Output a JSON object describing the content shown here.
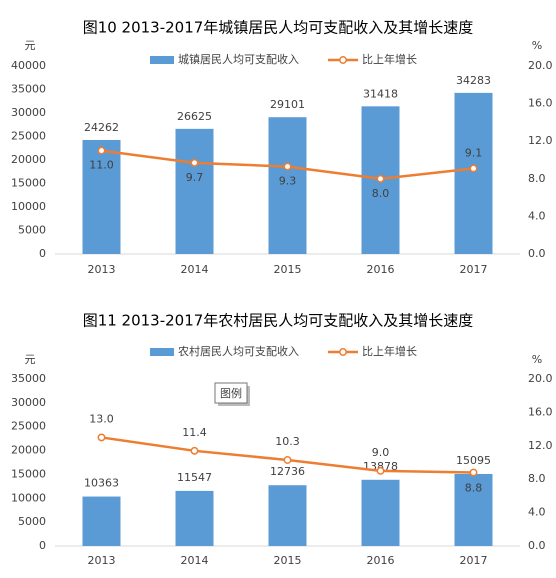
{
  "chart_data": [
    {
      "type": "bar",
      "title": "图10  2013-2017年城镇居民人均可支配收入及其增长速度",
      "ylabel": "元",
      "y2label": "%",
      "categories": [
        "2013",
        "2014",
        "2015",
        "2016",
        "2017"
      ],
      "series": [
        {
          "name": "城镇居民人均可支配收入",
          "type": "bar",
          "color": "#5b9bd5",
          "values": [
            24262,
            26625,
            29101,
            31418,
            34283
          ]
        },
        {
          "name": "比上年增长",
          "type": "line",
          "axis": "y2",
          "color": "#ed7d31",
          "values": [
            11.0,
            9.7,
            9.3,
            8.0,
            9.1
          ],
          "value_labels": [
            "11.0",
            "9.7",
            "9.3",
            "8.0",
            "9.1"
          ]
        }
      ],
      "ylim": [
        0,
        40000
      ],
      "yticks": [
        0,
        5000,
        10000,
        15000,
        20000,
        25000,
        30000,
        35000,
        40000
      ],
      "y2lim": [
        0,
        20
      ],
      "y2ticks": [
        {
          "value": 0,
          "label": "0.0"
        },
        {
          "value": 4,
          "label": "4.0"
        },
        {
          "value": 8,
          "label": "8.0"
        },
        {
          "value": 12,
          "label": "12.0"
        },
        {
          "value": 16,
          "label": "16.0"
        },
        {
          "value": 20,
          "label": "20.0"
        }
      ]
    },
    {
      "type": "bar",
      "title": "图11  2013-2017年农村居民人均可支配收入及其增长速度",
      "ylabel": "元",
      "y2label": "%",
      "annotation": "图例",
      "categories": [
        "2013",
        "2014",
        "2015",
        "2016",
        "2017"
      ],
      "series": [
        {
          "name": "农村居民人均可支配收入",
          "type": "bar",
          "color": "#5b9bd5",
          "values": [
            10363,
            11547,
            12736,
            13878,
            15095
          ]
        },
        {
          "name": "比上年增长",
          "type": "line",
          "axis": "y2",
          "color": "#ed7d31",
          "values": [
            13.0,
            11.4,
            10.3,
            9.0,
            8.8
          ],
          "value_labels": [
            "13.0",
            "11.4",
            "10.3",
            "9.0",
            "8.8"
          ]
        }
      ],
      "ylim": [
        0,
        35000
      ],
      "yticks": [
        0,
        5000,
        10000,
        15000,
        20000,
        25000,
        30000,
        35000
      ],
      "y2lim": [
        0,
        20
      ],
      "y2ticks": [
        {
          "value": 0,
          "label": "0.0"
        },
        {
          "value": 4,
          "label": "4.0"
        },
        {
          "value": 8,
          "label": "8.0"
        },
        {
          "value": 12,
          "label": "12.0"
        },
        {
          "value": 16,
          "label": "16.0"
        },
        {
          "value": 20,
          "label": "20.0"
        }
      ]
    }
  ]
}
